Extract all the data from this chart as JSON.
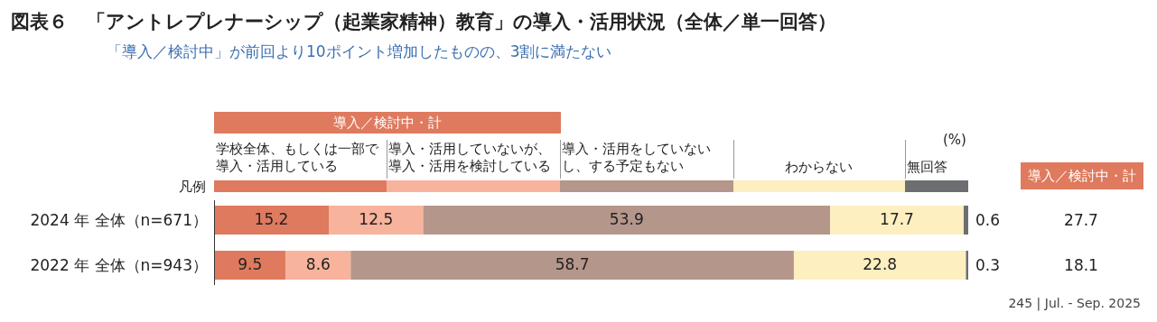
{
  "chart_data": {
    "type": "bar",
    "orientation": "horizontal",
    "stacked": true,
    "data_labels": true,
    "title": "図表６　「アントレプレナーシップ（起業家精神）教育」の導入・活用状況（全体／単一回答）",
    "subtitle": "「導入／検討中」が前回より10ポイント増加したものの、3割に満たない",
    "legend_title": "凡例",
    "legend": "top",
    "categories": [
      "2024 年 全体（n=671）",
      "2022 年 全体（n=943）"
    ],
    "series": [
      {
        "name": "学校全体、もしくは一部で導入・活用している",
        "color": "#df7a5e",
        "values": [
          15.2,
          9.5
        ]
      },
      {
        "name": "導入・活用していないが、導入・活用を検討している",
        "color": "#f7b39c",
        "values": [
          12.5,
          8.6
        ]
      },
      {
        "name": "導入・活用をしていないし、する予定もない",
        "color": "#b5968b",
        "values": [
          53.9,
          58.7
        ]
      },
      {
        "name": "わからない",
        "color": "#fdefc0",
        "values": [
          17.7,
          22.8
        ]
      },
      {
        "name": "無回答",
        "color": "#6d6e71",
        "values": [
          0.6,
          0.3
        ]
      }
    ],
    "annotations": [
      "導入／検討中・計",
      "導入／検討中・計",
      "(%)",
      "245 | Jul. - Sep. 2025",
      "27.7",
      "18.1"
    ]
  }
}
